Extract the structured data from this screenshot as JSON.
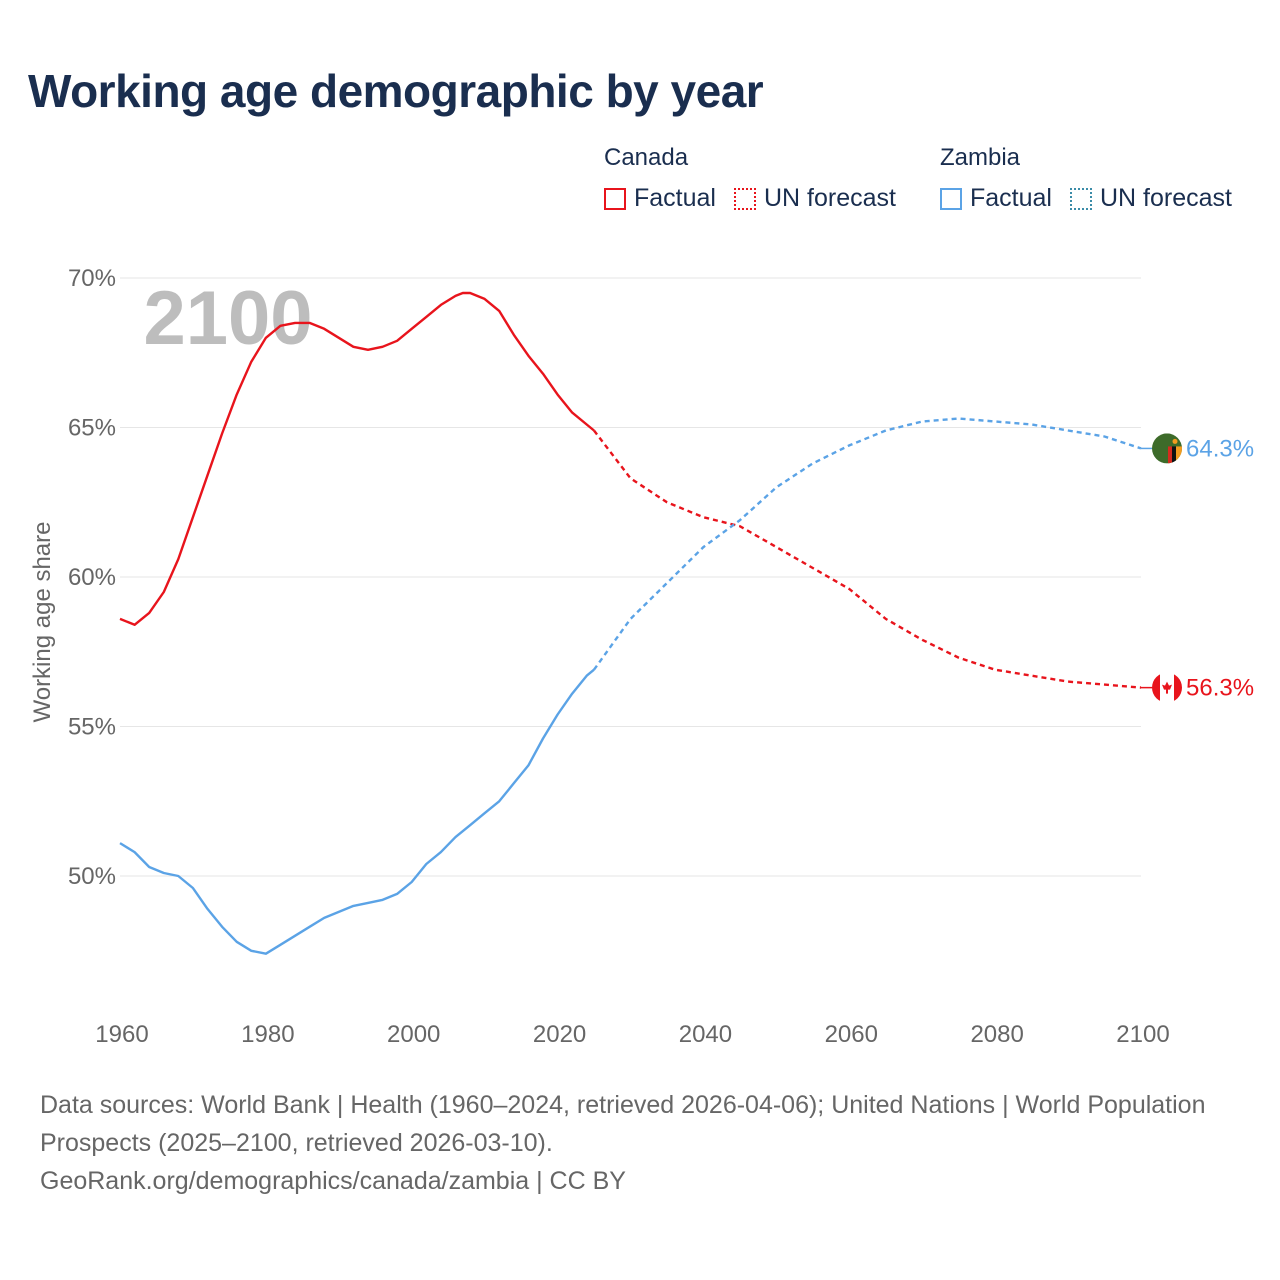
{
  "title": "Working age demographic by year",
  "legend": {
    "groups": [
      {
        "name": "Canada",
        "color": "#e8141c",
        "items": [
          {
            "label": "Factual",
            "style": "solid"
          },
          {
            "label": "UN forecast",
            "style": "dotted"
          }
        ]
      },
      {
        "name": "Zambia",
        "color": "#5ba3e6",
        "forecast_color": "#3b8ca8",
        "items": [
          {
            "label": "Factual",
            "style": "solid"
          },
          {
            "label": "UN forecast",
            "style": "dotted"
          }
        ]
      }
    ]
  },
  "chart_data": {
    "type": "line",
    "year_label": "2100",
    "ylabel": "Working age share",
    "xlabel": "",
    "xlim": [
      1960,
      2100
    ],
    "ylim": [
      47,
      70
    ],
    "xticks": [
      1960,
      1980,
      2000,
      2020,
      2040,
      2060,
      2080,
      2100
    ],
    "yticks": [
      50,
      55,
      60,
      65,
      70
    ],
    "ytick_labels": [
      "50%",
      "55%",
      "60%",
      "65%",
      "70%"
    ],
    "forecast_start": 2025,
    "series": [
      {
        "name": "Canada",
        "color": "#e8141c",
        "end_label": "56.3%",
        "flag": "canada",
        "points": [
          [
            1960,
            58.6
          ],
          [
            1962,
            58.4
          ],
          [
            1964,
            58.8
          ],
          [
            1966,
            59.5
          ],
          [
            1968,
            60.6
          ],
          [
            1970,
            62.0
          ],
          [
            1972,
            63.4
          ],
          [
            1974,
            64.8
          ],
          [
            1976,
            66.1
          ],
          [
            1978,
            67.2
          ],
          [
            1980,
            68.0
          ],
          [
            1982,
            68.4
          ],
          [
            1984,
            68.5
          ],
          [
            1986,
            68.5
          ],
          [
            1988,
            68.3
          ],
          [
            1990,
            68.0
          ],
          [
            1992,
            67.7
          ],
          [
            1994,
            67.6
          ],
          [
            1996,
            67.7
          ],
          [
            1998,
            67.9
          ],
          [
            2000,
            68.3
          ],
          [
            2002,
            68.7
          ],
          [
            2004,
            69.1
          ],
          [
            2006,
            69.4
          ],
          [
            2007,
            69.5
          ],
          [
            2008,
            69.5
          ],
          [
            2010,
            69.3
          ],
          [
            2012,
            68.9
          ],
          [
            2014,
            68.1
          ],
          [
            2016,
            67.4
          ],
          [
            2018,
            66.8
          ],
          [
            2020,
            66.1
          ],
          [
            2022,
            65.5
          ],
          [
            2024,
            65.1
          ],
          [
            2025,
            64.9
          ],
          [
            2030,
            63.3
          ],
          [
            2035,
            62.5
          ],
          [
            2040,
            62.0
          ],
          [
            2045,
            61.7
          ],
          [
            2050,
            61.0
          ],
          [
            2055,
            60.3
          ],
          [
            2060,
            59.6
          ],
          [
            2065,
            58.6
          ],
          [
            2070,
            57.9
          ],
          [
            2075,
            57.3
          ],
          [
            2080,
            56.9
          ],
          [
            2085,
            56.7
          ],
          [
            2090,
            56.5
          ],
          [
            2095,
            56.4
          ],
          [
            2100,
            56.3
          ]
        ]
      },
      {
        "name": "Zambia",
        "color": "#5ba3e6",
        "end_label": "64.3%",
        "flag": "zambia",
        "points": [
          [
            1960,
            51.1
          ],
          [
            1962,
            50.8
          ],
          [
            1964,
            50.3
          ],
          [
            1966,
            50.1
          ],
          [
            1968,
            50.0
          ],
          [
            1970,
            49.6
          ],
          [
            1972,
            48.9
          ],
          [
            1974,
            48.3
          ],
          [
            1976,
            47.8
          ],
          [
            1978,
            47.5
          ],
          [
            1980,
            47.4
          ],
          [
            1982,
            47.7
          ],
          [
            1984,
            48.0
          ],
          [
            1986,
            48.3
          ],
          [
            1988,
            48.6
          ],
          [
            1990,
            48.8
          ],
          [
            1992,
            49.0
          ],
          [
            1994,
            49.1
          ],
          [
            1996,
            49.2
          ],
          [
            1998,
            49.4
          ],
          [
            2000,
            49.8
          ],
          [
            2002,
            50.4
          ],
          [
            2004,
            50.8
          ],
          [
            2006,
            51.3
          ],
          [
            2008,
            51.7
          ],
          [
            2010,
            52.1
          ],
          [
            2012,
            52.5
          ],
          [
            2014,
            53.1
          ],
          [
            2016,
            53.7
          ],
          [
            2018,
            54.6
          ],
          [
            2020,
            55.4
          ],
          [
            2022,
            56.1
          ],
          [
            2024,
            56.7
          ],
          [
            2025,
            56.9
          ],
          [
            2030,
            58.6
          ],
          [
            2035,
            59.8
          ],
          [
            2040,
            61.0
          ],
          [
            2045,
            61.9
          ],
          [
            2050,
            63.0
          ],
          [
            2055,
            63.8
          ],
          [
            2060,
            64.4
          ],
          [
            2065,
            64.9
          ],
          [
            2070,
            65.2
          ],
          [
            2075,
            65.3
          ],
          [
            2080,
            65.2
          ],
          [
            2085,
            65.1
          ],
          [
            2090,
            64.9
          ],
          [
            2095,
            64.7
          ],
          [
            2100,
            64.3
          ]
        ]
      }
    ]
  },
  "footer": {
    "sources": "Data sources: World Bank | Health (1960–2024, retrieved 2026-04-06); United Nations | World Population Prospects (2025–2100, retrieved 2026-03-10).",
    "credit": "GeoRank.org/demographics/canada/zambia | CC BY"
  }
}
